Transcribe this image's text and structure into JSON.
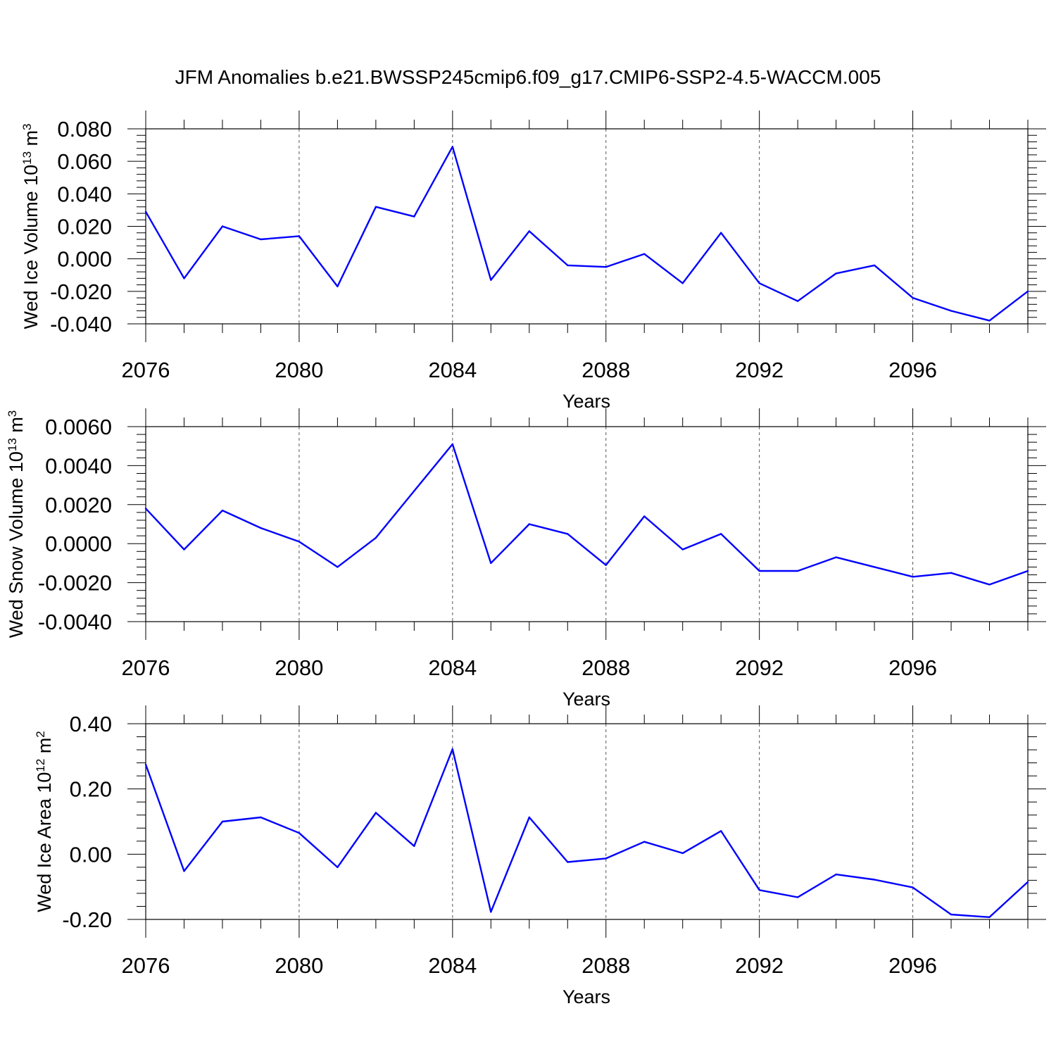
{
  "title": "JFM Anomalies b.e21.BWSSP245cmip6.f09_g17.CMIP6-SSP2-4.5-WACCM.005",
  "colors": {
    "line": "#0000ff",
    "axis": "#000000",
    "grid": "#555555"
  },
  "chart_data": [
    {
      "type": "line",
      "name": "ice-volume",
      "ylabel": {
        "text": "Wed Ice Volume 10",
        "exponent": "13",
        "unit": "m",
        "unit_exponent": "3"
      },
      "xlabel": "Years",
      "xlim": [
        2076,
        2099
      ],
      "ylim": [
        -0.04,
        0.08
      ],
      "grid": "vertical-dashed",
      "x_ticks": [
        "2076",
        "2080",
        "2084",
        "2088",
        "2092",
        "2096"
      ],
      "y_ticks": [
        "-0.040",
        "-0.020",
        "0.000",
        "0.020",
        "0.040",
        "0.060",
        "0.080"
      ],
      "x": [
        2076,
        2077,
        2078,
        2079,
        2080,
        2081,
        2082,
        2083,
        2084,
        2085,
        2086,
        2087,
        2088,
        2089,
        2090,
        2091,
        2092,
        2093,
        2094,
        2095,
        2096,
        2097,
        2098,
        2099
      ],
      "values": [
        0.029,
        -0.012,
        0.02,
        0.012,
        0.014,
        -0.017,
        0.032,
        0.026,
        0.069,
        -0.013,
        0.017,
        -0.004,
        -0.005,
        0.003,
        -0.015,
        0.016,
        -0.015,
        -0.026,
        -0.009,
        -0.004,
        -0.024,
        -0.032,
        -0.038,
        -0.02
      ]
    },
    {
      "type": "line",
      "name": "snow-volume",
      "ylabel": {
        "text": "Wed Snow Volume 10",
        "exponent": "13",
        "unit": "m",
        "unit_exponent": "3"
      },
      "xlabel": "Years",
      "xlim": [
        2076,
        2099
      ],
      "ylim": [
        -0.004,
        0.006
      ],
      "grid": "vertical-dashed",
      "x_ticks": [
        "2076",
        "2080",
        "2084",
        "2088",
        "2092",
        "2096"
      ],
      "y_ticks": [
        "-0.0040",
        "-0.0020",
        "0.0000",
        "0.0020",
        "0.0040",
        "0.0060"
      ],
      "x": [
        2076,
        2077,
        2078,
        2079,
        2080,
        2081,
        2082,
        2083,
        2084,
        2085,
        2086,
        2087,
        2088,
        2089,
        2090,
        2091,
        2092,
        2093,
        2094,
        2095,
        2096,
        2097,
        2098,
        2099
      ],
      "values": [
        0.0018,
        -0.0003,
        0.0017,
        0.0008,
        0.0001,
        -0.0012,
        0.0003,
        0.0027,
        0.0051,
        -0.001,
        0.001,
        0.0005,
        -0.0011,
        0.0014,
        -0.0003,
        0.0005,
        -0.0014,
        -0.0014,
        -0.0007,
        -0.0012,
        -0.0017,
        -0.0015,
        -0.0021,
        -0.0014
      ]
    },
    {
      "type": "line",
      "name": "ice-area",
      "ylabel": {
        "text": "Wed Ice Area 10",
        "exponent": "12",
        "unit": "m",
        "unit_exponent": "2"
      },
      "xlabel": "Years",
      "xlim": [
        2076,
        2099
      ],
      "ylim": [
        -0.2,
        0.4
      ],
      "grid": "vertical-dashed",
      "x_ticks": [
        "2076",
        "2080",
        "2084",
        "2088",
        "2092",
        "2096"
      ],
      "y_ticks": [
        "-0.20",
        "0.00",
        "0.20",
        "0.40"
      ],
      "x": [
        2076,
        2077,
        2078,
        2079,
        2080,
        2081,
        2082,
        2083,
        2084,
        2085,
        2086,
        2087,
        2088,
        2089,
        2090,
        2091,
        2092,
        2093,
        2094,
        2095,
        2096,
        2097,
        2098,
        2099
      ],
      "values": [
        0.275,
        -0.052,
        0.1,
        0.113,
        0.065,
        -0.04,
        0.127,
        0.025,
        0.322,
        -0.177,
        0.113,
        -0.024,
        -0.013,
        0.038,
        0.003,
        0.071,
        -0.11,
        -0.132,
        -0.062,
        -0.078,
        -0.102,
        -0.185,
        -0.193,
        -0.085
      ]
    }
  ]
}
